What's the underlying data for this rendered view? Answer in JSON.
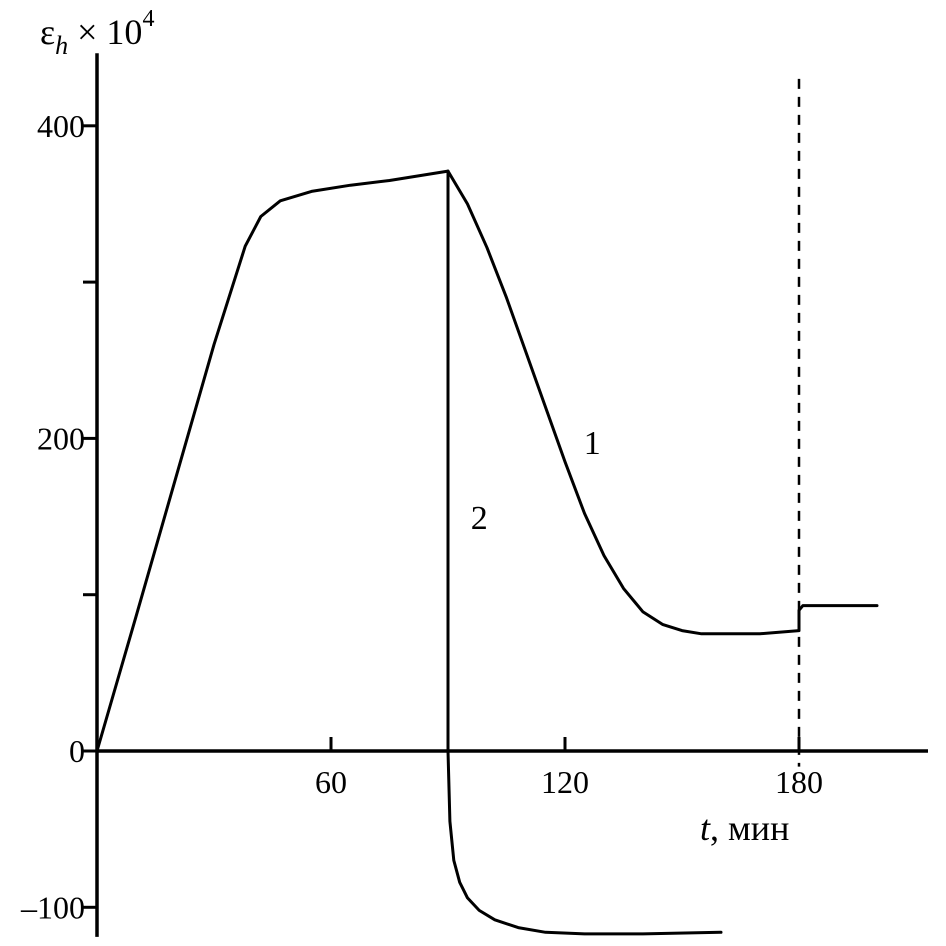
{
  "chart_data": {
    "type": "line",
    "ylabel": {
      "symbol": "ε",
      "subscript": "h",
      "multiplier": " × 10",
      "exponent": "4"
    },
    "xlabel": {
      "variable": "t",
      "unit": ", мин"
    },
    "xlim": [
      0,
      210
    ],
    "ylim": [
      -110,
      440
    ],
    "x_ticks": [
      60,
      120,
      180
    ],
    "y_ticks": [
      -100,
      0,
      100,
      200,
      300,
      400
    ],
    "y_tick_labels": [
      {
        "value": 400,
        "label": "400"
      },
      {
        "value": 200,
        "label": "200"
      },
      {
        "value": 0,
        "label": "0"
      },
      {
        "value": -100,
        "label": "–100"
      }
    ],
    "x_tick_labels": [
      {
        "value": 60,
        "label": "60"
      },
      {
        "value": 120,
        "label": "120"
      },
      {
        "value": 180,
        "label": "180"
      }
    ],
    "series": [
      {
        "name": "1",
        "label_at": [
          127,
          190
        ],
        "points": [
          [
            0,
            0
          ],
          [
            10,
            86
          ],
          [
            20,
            173
          ],
          [
            30,
            260
          ],
          [
            38,
            323
          ],
          [
            42,
            342
          ],
          [
            47,
            352
          ],
          [
            55,
            358
          ],
          [
            65,
            362
          ],
          [
            75,
            365
          ],
          [
            90,
            371
          ],
          [
            95,
            350
          ],
          [
            100,
            322
          ],
          [
            105,
            290
          ],
          [
            110,
            255
          ],
          [
            115,
            220
          ],
          [
            120,
            185
          ],
          [
            125,
            152
          ],
          [
            130,
            125
          ],
          [
            135,
            104
          ],
          [
            140,
            89
          ],
          [
            145,
            81
          ],
          [
            150,
            77
          ],
          [
            155,
            75
          ],
          [
            160,
            75
          ],
          [
            170,
            75
          ],
          [
            180,
            77
          ],
          [
            180,
            90
          ],
          [
            181,
            93
          ],
          [
            200,
            93
          ]
        ]
      },
      {
        "name": "2",
        "label_at": [
          98,
          142
        ],
        "points": [
          [
            90,
            371
          ],
          [
            90,
            0
          ],
          [
            90.5,
            -45
          ],
          [
            91.5,
            -70
          ],
          [
            93,
            -84
          ],
          [
            95,
            -94
          ],
          [
            98,
            -102
          ],
          [
            102,
            -108
          ],
          [
            108,
            -113
          ],
          [
            115,
            -116
          ],
          [
            125,
            -117
          ],
          [
            140,
            -117
          ],
          [
            160,
            -116
          ]
        ]
      }
    ],
    "annotations": [
      {
        "type": "vertical-dashed-line",
        "x": 180,
        "y_range": [
          -10,
          430
        ]
      }
    ],
    "grid": false,
    "legend": "none"
  }
}
